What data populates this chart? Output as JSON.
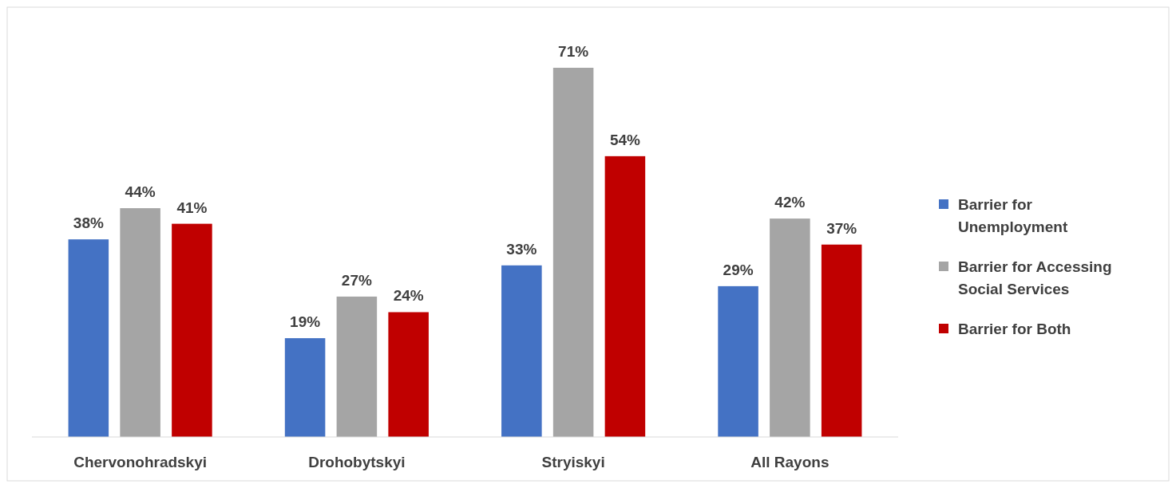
{
  "chart_data": {
    "type": "bar",
    "categories": [
      "Chervonohradskyi",
      "Drohobytskyi",
      "Stryiskyi",
      "All Rayons"
    ],
    "series": [
      {
        "name": "Barrier for Unemployment",
        "color": "#4472c4",
        "values": [
          38,
          19,
          33,
          29
        ],
        "value_labels": [
          "38%",
          "19%",
          "33%",
          "29%"
        ]
      },
      {
        "name": "Barrier for Accessing Social Services",
        "color": "#a5a5a5",
        "values": [
          44,
          27,
          71,
          42
        ],
        "value_labels": [
          "44%",
          "27%",
          "71%",
          "42%"
        ]
      },
      {
        "name": "Barrier for Both",
        "color": "#c00000",
        "values": [
          41,
          24,
          54,
          37
        ],
        "value_labels": [
          "41%",
          "24%",
          "54%",
          "37%"
        ]
      }
    ],
    "legend": "right",
    "grid": false
  }
}
